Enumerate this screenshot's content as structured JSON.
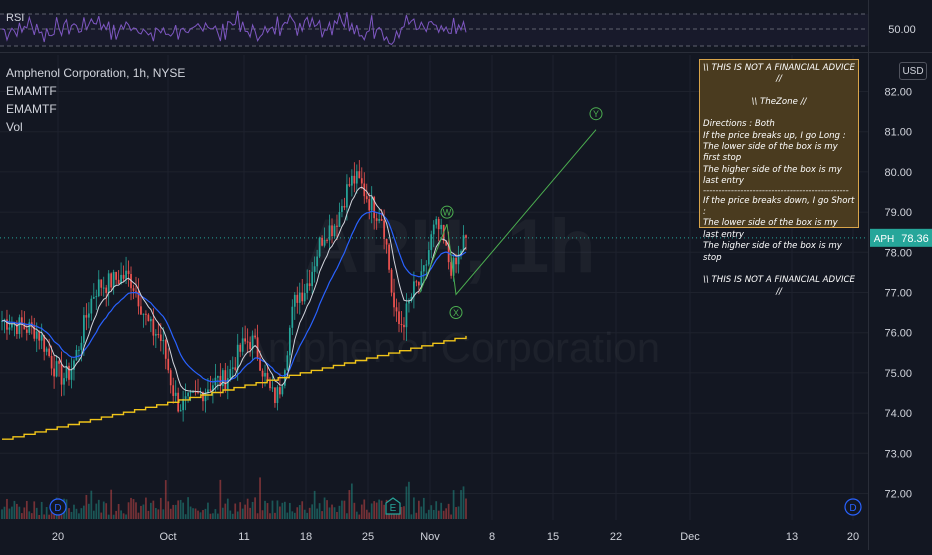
{
  "rsi_panel": {
    "label": "RSI",
    "level_label": "50.00"
  },
  "legend": {
    "symbol_line": "Amphenol Corporation, 1h, NYSE",
    "indicators": [
      "EMAMTF",
      "EMAMTF",
      "Vol"
    ]
  },
  "watermark": {
    "symbol": "APH, 1h",
    "name": "Amphenol Corporation"
  },
  "currency_badge": "USD",
  "price_tag": {
    "symbol": "APH",
    "value": "78.36"
  },
  "note_box": {
    "lines": [
      "\\\\ THIS IS NOT A FINANCIAL ADVICE //",
      "",
      "\\\\ TheZone //",
      "",
      "Directions : Both",
      "If the price breaks up, I  go Long :",
      "The lower side of the box  is my first stop",
      "The higher side of the box is my last entry",
      "-----------------------------------------------",
      "If the price breaks down, I  go Short :",
      "The lower side of the box is my last entry",
      "The higher side of the box is my stop",
      "",
      "\\\\ THIS IS NOT A FINANCIAL ADVICE //"
    ]
  },
  "wave_labels": [
    "W",
    "X",
    "Y"
  ],
  "event_badges": [
    "D",
    "E",
    "D"
  ],
  "colors": {
    "up": "#26a69a",
    "down": "#ef5350",
    "ema_fast": "#d1d4dc",
    "ema_slow": "#2962ff",
    "trend": "#f0c419",
    "wave": "#4caf50",
    "rsi": "#7e57c2",
    "background": "#131722"
  },
  "chart_data": {
    "type": "candlestick",
    "title": "Amphenol Corporation, 1h, NYSE",
    "ylim": [
      71.5,
      82.5
    ],
    "y_ticks": [
      "72.00",
      "73.00",
      "74.00",
      "75.00",
      "76.00",
      "77.00",
      "78.00",
      "79.00",
      "80.00",
      "81.00",
      "82.00"
    ],
    "x_ticks": [
      "20",
      "Oct",
      "11",
      "18",
      "25",
      "Nov",
      "8",
      "15",
      "22",
      "Dec",
      "13",
      "20"
    ],
    "last_price": 78.36,
    "price_path_keypoints": [
      {
        "t": 0,
        "price": 76.3
      },
      {
        "t": 12,
        "price": 76.1
      },
      {
        "t": 25,
        "price": 74.9
      },
      {
        "t": 40,
        "price": 77.2
      },
      {
        "t": 50,
        "price": 77.4
      },
      {
        "t": 62,
        "price": 76.0
      },
      {
        "t": 72,
        "price": 74.2
      },
      {
        "t": 88,
        "price": 74.8
      },
      {
        "t": 100,
        "price": 75.8
      },
      {
        "t": 110,
        "price": 74.4
      },
      {
        "t": 120,
        "price": 77.0
      },
      {
        "t": 132,
        "price": 78.6
      },
      {
        "t": 142,
        "price": 79.8
      },
      {
        "t": 152,
        "price": 79.0
      },
      {
        "t": 160,
        "price": 76.2
      },
      {
        "t": 168,
        "price": 77.2
      },
      {
        "t": 175,
        "price": 78.6
      },
      {
        "t": 182,
        "price": 77.6
      },
      {
        "t": 187,
        "price": 78.36
      }
    ],
    "trend_line_start": 73.35,
    "trend_line_end": 75.92,
    "wave_path": [
      {
        "label": "start",
        "price": 77.0
      },
      {
        "label": "W",
        "price": 78.7
      },
      {
        "label": "X",
        "price": 76.95
      },
      {
        "label": "Y",
        "price": 81.05
      }
    ]
  }
}
